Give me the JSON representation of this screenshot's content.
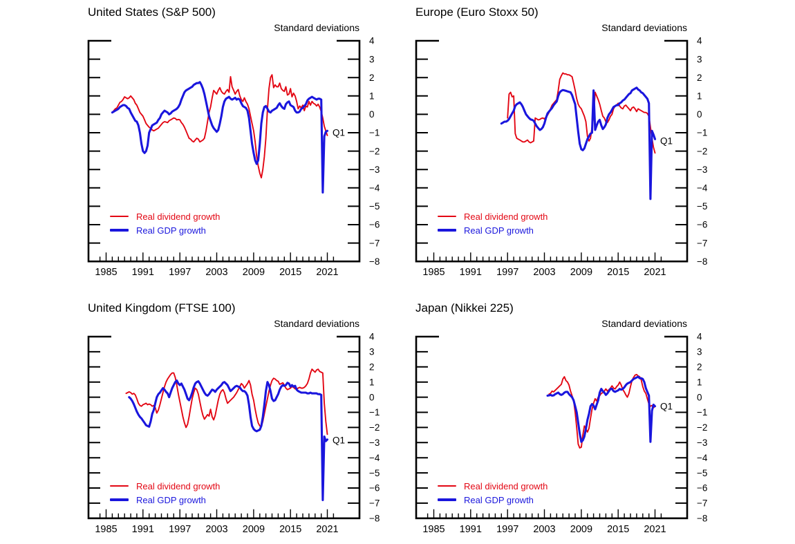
{
  "palette": {
    "red": "#e30613",
    "blue": "#1a16dd",
    "axis": "#000000",
    "background": "#ffffff"
  },
  "y_axis": {
    "label": "Standard deviations",
    "max": 4,
    "min": -8,
    "tick_step": 1,
    "tick_labels": [
      "4",
      "3",
      "2",
      "1",
      "0",
      "−1",
      "−2",
      "−3",
      "−4",
      "−5",
      "−6",
      "−7",
      "−8"
    ]
  },
  "x_axis": {
    "tick_years": [
      1985,
      1991,
      1997,
      2003,
      2009,
      2015,
      2021
    ],
    "tick_labels": [
      "1985",
      "1991",
      "1997",
      "2003",
      "2009",
      "2015",
      "2021"
    ],
    "minor_tick_start": 1984,
    "minor_tick_end": 2022
  },
  "legend_items": [
    "Real dividend growth",
    "Real GDP growth"
  ],
  "chart_data": [
    {
      "type": "line",
      "title": "United States (S&P 500)",
      "ylabel": "Standard deviations",
      "ylim": [
        -8,
        4
      ],
      "annotation": {
        "text": "Q1",
        "value": -1.0
      },
      "series": [
        {
          "name": "Real dividend growth",
          "color": "red",
          "start": 1986.0,
          "step": 0.25,
          "values": [
            0.1,
            0.2,
            0.3,
            0.35,
            0.5,
            0.65,
            0.7,
            0.8,
            0.95,
            0.9,
            0.85,
            0.9,
            1.0,
            0.9,
            0.8,
            0.6,
            0.5,
            0.3,
            0.1,
            0.0,
            -0.1,
            -0.3,
            -0.5,
            -0.6,
            -0.7,
            -0.75,
            -0.85,
            -0.9,
            -0.85,
            -0.8,
            -0.75,
            -0.65,
            -0.55,
            -0.45,
            -0.4,
            -0.42,
            -0.45,
            -0.35,
            -0.3,
            -0.25,
            -0.2,
            -0.22,
            -0.3,
            -0.28,
            -0.3,
            -0.45,
            -0.55,
            -0.7,
            -0.9,
            -1.1,
            -1.3,
            -1.35,
            -1.45,
            -1.5,
            -1.4,
            -1.3,
            -1.35,
            -1.5,
            -1.45,
            -1.4,
            -1.3,
            -0.9,
            -0.4,
            0.1,
            0.4,
            0.9,
            1.3,
            1.2,
            1.1,
            1.3,
            1.45,
            1.25,
            1.15,
            1.1,
            1.25,
            1.35,
            1.2,
            2.05,
            1.5,
            1.3,
            1.1,
            1.25,
            1.35,
            1.0,
            0.8,
            0.7,
            0.9,
            0.7,
            0.55,
            0.3,
            -0.1,
            -0.5,
            -0.9,
            -1.5,
            -2.3,
            -2.8,
            -3.2,
            -3.45,
            -3.0,
            -2.3,
            -1.3,
            0.3,
            1.4,
            2.0,
            2.15,
            1.45,
            1.6,
            1.5,
            1.5,
            1.7,
            1.4,
            1.3,
            1.25,
            1.5,
            1.05,
            1.1,
            1.4,
            0.95,
            1.15,
            1.0,
            0.7,
            0.3,
            0.45,
            0.35,
            0.5,
            0.2,
            0.45,
            0.4,
            0.7,
            0.5,
            0.7,
            0.6,
            0.55,
            0.45,
            0.55,
            0.4,
            0.15,
            -0.2,
            -0.65,
            -0.9,
            -1.15
          ]
        },
        {
          "name": "Real GDP growth",
          "color": "blue",
          "start": 1986.0,
          "step": 0.25,
          "values": [
            0.1,
            0.15,
            0.2,
            0.25,
            0.3,
            0.4,
            0.45,
            0.5,
            0.5,
            0.45,
            0.35,
            0.3,
            0.1,
            -0.05,
            -0.2,
            -0.35,
            -0.4,
            -0.6,
            -1.0,
            -1.6,
            -2.0,
            -2.1,
            -2.0,
            -1.7,
            -1.0,
            -0.8,
            -0.6,
            -0.55,
            -0.5,
            -0.45,
            -0.3,
            -0.2,
            0.0,
            0.1,
            0.2,
            0.15,
            0.1,
            0.0,
            0.05,
            0.15,
            0.2,
            0.25,
            0.3,
            0.4,
            0.55,
            0.8,
            1.0,
            1.2,
            1.3,
            1.35,
            1.4,
            1.45,
            1.5,
            1.6,
            1.65,
            1.7,
            1.7,
            1.75,
            1.6,
            1.4,
            1.1,
            0.7,
            0.3,
            -0.1,
            -0.35,
            -0.6,
            -0.75,
            -0.85,
            -0.95,
            -0.85,
            -0.5,
            -0.1,
            0.4,
            0.7,
            0.85,
            0.9,
            0.95,
            0.85,
            0.8,
            0.85,
            0.9,
            0.8,
            0.85,
            0.8,
            0.6,
            0.45,
            0.4,
            0.35,
            0.2,
            -0.2,
            -0.9,
            -1.6,
            -2.1,
            -2.5,
            -2.7,
            -2.5,
            -1.6,
            -0.5,
            0.1,
            0.4,
            0.45,
            0.3,
            0.15,
            0.1,
            0.2,
            0.25,
            0.3,
            0.35,
            0.5,
            0.6,
            0.45,
            0.35,
            0.3,
            0.55,
            0.65,
            0.7,
            0.5,
            0.45,
            0.4,
            0.2,
            0.1,
            0.1,
            0.15,
            0.3,
            0.35,
            0.45,
            0.55,
            0.75,
            0.85,
            0.9,
            0.95,
            0.9,
            0.85,
            0.8,
            0.85,
            0.85,
            0.8,
            -4.25,
            -1.2,
            -0.95,
            -0.9
          ]
        }
      ]
    },
    {
      "type": "line",
      "title": "Europe (Euro Stoxx 50)",
      "ylabel": "Standard deviations",
      "ylim": [
        -8,
        4
      ],
      "annotation": {
        "text": "Q1",
        "value": -1.45
      },
      "series": [
        {
          "name": "Real dividend growth",
          "color": "red",
          "start": 1997.0,
          "step": 0.25,
          "values": [
            -0.2,
            1.1,
            1.2,
            0.95,
            1.0,
            -1.05,
            -1.3,
            -1.35,
            -1.4,
            -1.45,
            -1.5,
            -1.5,
            -1.45,
            -1.4,
            -1.5,
            -1.55,
            -1.5,
            -1.45,
            -0.2,
            -0.25,
            -0.3,
            -0.28,
            -0.22,
            -0.2,
            -0.25,
            -0.15,
            -0.05,
            0.1,
            0.3,
            0.5,
            0.6,
            0.7,
            0.8,
            1.3,
            1.9,
            2.1,
            2.25,
            2.2,
            2.2,
            2.15,
            2.15,
            2.1,
            2.05,
            1.7,
            1.3,
            0.85,
            0.55,
            0.4,
            0.3,
            0.1,
            -0.1,
            -0.4,
            -1.2,
            -1.45,
            -1.3,
            -0.7,
            -0.1,
            1.2,
            1.0,
            0.8,
            0.55,
            0.2,
            -0.1,
            -0.2,
            -0.4,
            -0.45,
            -0.3,
            -0.1,
            0.0,
            0.3,
            0.45,
            0.5,
            0.6,
            0.45,
            0.35,
            0.3,
            0.45,
            0.5,
            0.4,
            0.3,
            0.2,
            0.35,
            0.4,
            0.3,
            0.15,
            0.3,
            0.25,
            0.2,
            0.15,
            0.1,
            0.1,
            0.05,
            -0.1,
            -0.7,
            -1.3,
            -1.8,
            -2.1
          ]
        },
        {
          "name": "Real GDP growth",
          "color": "blue",
          "start": 1996.0,
          "step": 0.25,
          "values": [
            -0.5,
            -0.45,
            -0.4,
            -0.4,
            -0.35,
            -0.25,
            -0.1,
            0.05,
            0.2,
            0.45,
            0.55,
            0.6,
            0.65,
            0.55,
            0.4,
            0.2,
            0.0,
            -0.1,
            -0.2,
            -0.28,
            -0.3,
            -0.35,
            -0.5,
            -0.65,
            -0.75,
            -0.85,
            -0.8,
            -0.7,
            -0.5,
            -0.2,
            0.05,
            0.15,
            0.25,
            0.35,
            0.5,
            0.6,
            0.7,
            1.0,
            1.2,
            1.28,
            1.32,
            1.3,
            1.28,
            1.25,
            1.22,
            1.2,
            1.05,
            0.8,
            0.55,
            -0.2,
            -0.95,
            -1.6,
            -1.9,
            -1.95,
            -1.85,
            -1.6,
            -1.35,
            -1.2,
            -1.05,
            -1.0,
            1.3,
            -0.85,
            -0.6,
            -0.4,
            -0.3,
            -0.6,
            -0.8,
            -0.7,
            -0.55,
            -0.2,
            0.0,
            0.1,
            0.25,
            0.4,
            0.45,
            0.5,
            0.5,
            0.6,
            0.65,
            0.75,
            0.8,
            0.9,
            1.0,
            1.1,
            1.15,
            1.3,
            1.35,
            1.4,
            1.45,
            1.35,
            1.3,
            1.2,
            1.15,
            1.05,
            0.95,
            0.85,
            0.6,
            -4.6,
            -0.9,
            -1.1,
            -1.35
          ]
        }
      ]
    },
    {
      "type": "line",
      "title": "United Kingdom (FTSE 100)",
      "ylabel": "Standard deviations",
      "ylim": [
        -8,
        4
      ],
      "annotation": {
        "text": "Q1",
        "value": -2.85
      },
      "series": [
        {
          "name": "Real dividend growth",
          "color": "red",
          "start": 1988.25,
          "step": 0.25,
          "values": [
            0.25,
            0.3,
            0.35,
            0.3,
            0.2,
            0.25,
            0.15,
            -0.1,
            -0.4,
            -0.55,
            -0.6,
            -0.5,
            -0.45,
            -0.4,
            -0.5,
            -0.45,
            -0.5,
            -0.6,
            -0.55,
            -0.7,
            -1.05,
            -0.85,
            -0.5,
            -0.1,
            0.3,
            0.7,
            1.0,
            1.2,
            1.35,
            1.5,
            1.6,
            1.6,
            1.3,
            0.8,
            0.2,
            -0.3,
            -0.8,
            -1.3,
            -1.7,
            -2.0,
            -1.8,
            -1.3,
            -0.7,
            -0.1,
            0.3,
            0.6,
            0.5,
            0.2,
            -0.3,
            -0.8,
            -1.2,
            -1.45,
            -1.3,
            -1.15,
            -1.25,
            -0.8,
            -1.3,
            -1.5,
            -1.2,
            -0.7,
            -0.2,
            0.2,
            0.4,
            0.5,
            0.3,
            -0.1,
            -0.4,
            -0.3,
            -0.2,
            -0.1,
            0.0,
            0.15,
            0.3,
            0.5,
            0.7,
            0.9,
            0.8,
            0.6,
            0.75,
            0.9,
            1.1,
            0.8,
            0.2,
            -0.2,
            -0.8,
            -1.3,
            -1.7,
            -1.9,
            -1.95,
            -1.6,
            -1.1,
            -0.6,
            -0.1,
            0.4,
            0.8,
            1.1,
            1.25,
            1.2,
            1.1,
            1.05,
            0.85,
            0.9,
            0.95,
            0.8,
            0.6,
            0.5,
            0.55,
            0.6,
            0.7,
            0.65,
            0.55,
            0.55,
            0.6,
            0.65,
            0.6,
            0.6,
            0.65,
            0.75,
            0.9,
            1.2,
            1.6,
            1.85,
            1.75,
            1.65,
            1.8,
            1.85,
            1.7,
            1.65,
            1.6,
            -0.4,
            -1.6,
            -2.45
          ]
        },
        {
          "name": "Real GDP growth",
          "color": "blue",
          "start": 1988.75,
          "step": 0.25,
          "values": [
            0.0,
            -0.1,
            -0.25,
            -0.45,
            -0.7,
            -0.95,
            -1.15,
            -1.3,
            -1.4,
            -1.55,
            -1.7,
            -1.85,
            -1.9,
            -1.95,
            -1.6,
            -1.1,
            -0.85,
            -0.4,
            0.0,
            0.2,
            0.3,
            0.45,
            0.6,
            0.5,
            0.35,
            0.25,
            0.0,
            0.3,
            0.6,
            0.8,
            1.0,
            1.1,
            0.9,
            0.8,
            0.9,
            0.7,
            0.5,
            0.2,
            -0.1,
            -0.2,
            0.0,
            0.3,
            0.65,
            0.9,
            1.0,
            1.05,
            0.9,
            0.7,
            0.5,
            0.3,
            0.15,
            0.1,
            0.2,
            0.35,
            0.5,
            0.45,
            0.35,
            0.5,
            0.6,
            0.7,
            0.8,
            0.95,
            1.0,
            0.9,
            0.8,
            0.6,
            0.4,
            0.5,
            0.6,
            0.7,
            0.75,
            0.7,
            0.65,
            0.5,
            0.4,
            0.4,
            0.3,
            0.1,
            -0.5,
            -1.3,
            -1.9,
            -2.1,
            -2.2,
            -2.25,
            -2.2,
            -2.15,
            -1.9,
            -1.3,
            -0.5,
            0.4,
            1.0,
            0.8,
            0.4,
            -0.1,
            -0.25,
            -0.2,
            0.0,
            0.2,
            0.5,
            0.7,
            0.8,
            0.75,
            0.8,
            0.95,
            0.9,
            0.7,
            0.8,
            0.7,
            0.75,
            0.5,
            0.4,
            0.35,
            0.3,
            0.3,
            0.3,
            0.3,
            0.25,
            0.25,
            0.3,
            0.25,
            0.25,
            0.25,
            0.25,
            0.2,
            0.2,
            0.15,
            -6.8,
            -2.6,
            -2.9,
            -2.8
          ]
        }
      ]
    },
    {
      "type": "line",
      "title": "Japan (Nikkei 225)",
      "ylabel": "Standard deviations",
      "ylim": [
        -8,
        4
      ],
      "annotation": {
        "text": "Q1",
        "value": -0.6
      },
      "series": [
        {
          "name": "Real dividend growth",
          "color": "red",
          "start": 2003.75,
          "step": 0.25,
          "values": [
            0.2,
            0.25,
            0.4,
            0.35,
            0.45,
            0.55,
            0.65,
            0.75,
            0.85,
            1.2,
            1.35,
            1.1,
            1.0,
            0.8,
            0.4,
            0.1,
            -0.2,
            -1.0,
            -2.0,
            -3.1,
            -3.35,
            -3.3,
            -2.5,
            -1.9,
            -2.1,
            -2.3,
            -2.05,
            -1.4,
            -0.8,
            -0.4,
            -0.1,
            -0.25,
            0.0,
            0.1,
            0.25,
            0.3,
            0.4,
            0.55,
            0.4,
            0.5,
            0.6,
            0.75,
            0.6,
            0.55,
            0.7,
            0.8,
            1.0,
            0.8,
            0.5,
            0.35,
            0.15,
            0.0,
            0.25,
            0.7,
            1.1,
            1.3,
            1.45,
            1.5,
            1.4,
            1.35,
            1.15,
            0.7,
            0.4,
            0.25,
            -0.1,
            -0.45,
            -0.6,
            -0.55,
            -0.7,
            -0.6
          ]
        },
        {
          "name": "Real GDP growth",
          "color": "blue",
          "start": 2003.5,
          "step": 0.25,
          "values": [
            0.1,
            0.12,
            0.15,
            0.1,
            0.12,
            0.2,
            0.25,
            0.3,
            0.2,
            0.15,
            0.2,
            0.3,
            0.35,
            0.35,
            0.2,
            0.1,
            0.0,
            -0.2,
            -0.6,
            -1.0,
            -1.7,
            -2.4,
            -2.95,
            -2.85,
            -2.6,
            -2.1,
            -1.5,
            -1.1,
            -0.6,
            -0.45,
            -0.55,
            -0.8,
            -0.5,
            -0.2,
            0.3,
            0.55,
            0.4,
            0.3,
            0.15,
            0.25,
            0.4,
            0.55,
            0.55,
            0.4,
            0.35,
            0.4,
            0.45,
            0.55,
            0.5,
            0.55,
            0.65,
            0.8,
            0.9,
            0.95,
            1.0,
            1.1,
            1.2,
            1.25,
            1.3,
            1.35,
            1.25,
            1.25,
            1.2,
            1.0,
            0.6,
            0.35,
            0.1,
            -2.95,
            -0.9,
            -0.5,
            -0.6
          ]
        }
      ]
    }
  ]
}
